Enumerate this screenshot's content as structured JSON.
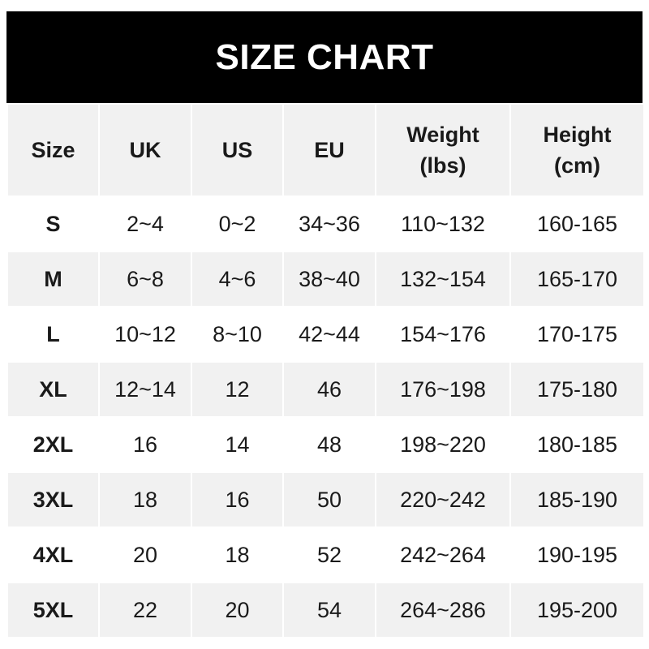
{
  "title": "SIZE CHART",
  "headers": [
    {
      "line1": "Size",
      "line2": ""
    },
    {
      "line1": "UK",
      "line2": ""
    },
    {
      "line1": "US",
      "line2": ""
    },
    {
      "line1": "EU",
      "line2": ""
    },
    {
      "line1": "Weight",
      "line2": "(lbs)"
    },
    {
      "line1": "Height",
      "line2": "(cm)"
    }
  ],
  "rows": [
    [
      "S",
      "2~4",
      "0~2",
      "34~36",
      "110~132",
      "160-165"
    ],
    [
      "M",
      "6~8",
      "4~6",
      "38~40",
      "132~154",
      "165-170"
    ],
    [
      "L",
      "10~12",
      "8~10",
      "42~44",
      "154~176",
      "170-175"
    ],
    [
      "XL",
      "12~14",
      "12",
      "46",
      "176~198",
      "175-180"
    ],
    [
      "2XL",
      "16",
      "14",
      "48",
      "198~220",
      "180-185"
    ],
    [
      "3XL",
      "18",
      "16",
      "50",
      "220~242",
      "185-190"
    ],
    [
      "4XL",
      "20",
      "18",
      "52",
      "242~264",
      "190-195"
    ],
    [
      "5XL",
      "22",
      "20",
      "54",
      "264~286",
      "195-200"
    ]
  ],
  "colors": {
    "banner": "#000000",
    "stripe": "#f1f1f1"
  }
}
